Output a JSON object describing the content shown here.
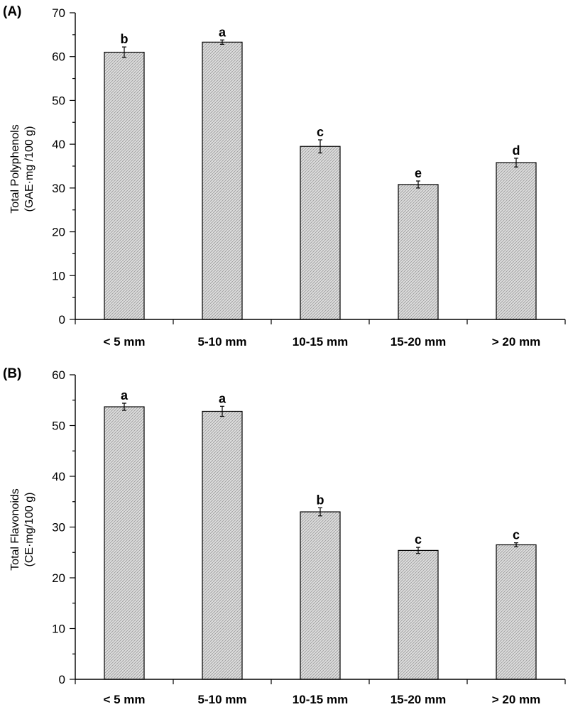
{
  "chart_data": [
    {
      "panel_label": "(A)",
      "type": "bar",
      "categories": [
        "< 5 mm",
        "5-10 mm",
        "10-15 mm",
        "15-20 mm",
        "> 20 mm"
      ],
      "values": [
        61.0,
        63.3,
        39.5,
        30.8,
        35.8
      ],
      "errors": [
        1.2,
        0.5,
        1.5,
        0.8,
        1.0
      ],
      "significance": [
        "b",
        "a",
        "c",
        "e",
        "d"
      ],
      "ylabel_line1": "Total Polyphenols",
      "ylabel_line2": "(GAE·mg /100 g)",
      "ylim": [
        0,
        70
      ],
      "yticks": [
        0,
        10,
        20,
        30,
        40,
        50,
        60,
        70
      ],
      "ytick_labels": [
        "0",
        "10",
        "20",
        "30",
        "40",
        "50",
        "60",
        "70"
      ],
      "grid": false,
      "colors": {
        "bar_fill": "#dcdcdc",
        "bar_stroke": "#000000",
        "hatch": "#9a9a9a"
      }
    },
    {
      "panel_label": "(B)",
      "type": "bar",
      "categories": [
        "< 5 mm",
        "5-10 mm",
        "10-15 mm",
        "15-20 mm",
        "> 20 mm"
      ],
      "values": [
        53.7,
        52.8,
        33.0,
        25.4,
        26.5
      ],
      "errors": [
        0.7,
        1.0,
        0.8,
        0.6,
        0.4
      ],
      "significance": [
        "a",
        "a",
        "b",
        "c",
        "c"
      ],
      "ylabel_line1": "Total Flavonoids",
      "ylabel_line2": "(CE·mg/100 g)",
      "ylim": [
        0,
        60
      ],
      "yticks": [
        0,
        10,
        20,
        30,
        40,
        50,
        60
      ],
      "ytick_labels": [
        "0",
        "10",
        "20",
        "30",
        "40",
        "50",
        "60"
      ],
      "grid": false,
      "colors": {
        "bar_fill": "#dcdcdc",
        "bar_stroke": "#000000",
        "hatch": "#9a9a9a"
      }
    }
  ]
}
